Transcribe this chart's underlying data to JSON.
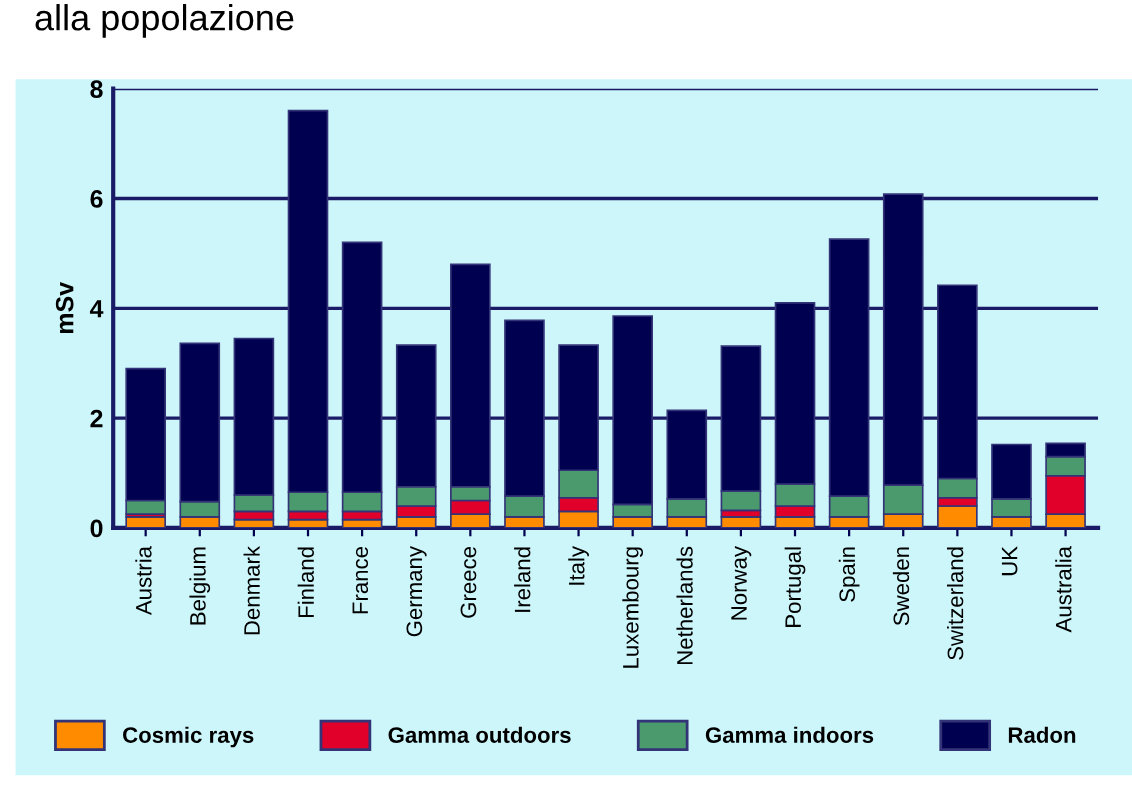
{
  "chart_data": {
    "type": "bar",
    "title": "alla popolazione",
    "ylabel": "mSv",
    "stacked": true,
    "categories": [
      "Austria",
      "Belgium",
      "Denmark",
      "Finland",
      "France",
      "Germany",
      "Greece",
      "Ireland",
      "Italy",
      "Luxembourg",
      "Netherlands",
      "Norway",
      "Portugal",
      "Spain",
      "Sweden",
      "Switzerland",
      "UK",
      "Australia"
    ],
    "series": [
      {
        "name": "Cosmic rays",
        "color": "#ff8c00",
        "values": [
          0.2,
          0.2,
          0.15,
          0.15,
          0.15,
          0.2,
          0.25,
          0.2,
          0.3,
          0.2,
          0.2,
          0.2,
          0.2,
          0.2,
          0.25,
          0.4,
          0.2,
          0.25
        ]
      },
      {
        "name": "Gamma outdoors",
        "color": "#e0002a",
        "values": [
          0.05,
          null,
          0.15,
          0.15,
          0.15,
          0.2,
          0.25,
          null,
          0.25,
          null,
          null,
          0.12,
          0.2,
          null,
          null,
          0.15,
          null,
          0.7
        ]
      },
      {
        "name": "Gamma indoors",
        "color": "#4a9a6e",
        "values": [
          0.25,
          0.28,
          0.3,
          0.35,
          0.35,
          0.35,
          0.25,
          0.38,
          0.5,
          0.23,
          0.33,
          0.35,
          0.4,
          0.38,
          0.53,
          0.35,
          0.33,
          0.35
        ]
      },
      {
        "name": "Radon",
        "color": "#000050",
        "values": [
          2.4,
          2.88,
          2.85,
          6.95,
          4.55,
          2.58,
          4.05,
          3.2,
          2.28,
          3.43,
          1.61,
          2.64,
          3.3,
          4.68,
          5.3,
          3.52,
          0.99,
          0.24
        ]
      }
    ],
    "ylim": [
      0,
      8
    ],
    "yticks": [
      0,
      2,
      4,
      6,
      8
    ],
    "grid": "y",
    "legend": "bottom"
  }
}
